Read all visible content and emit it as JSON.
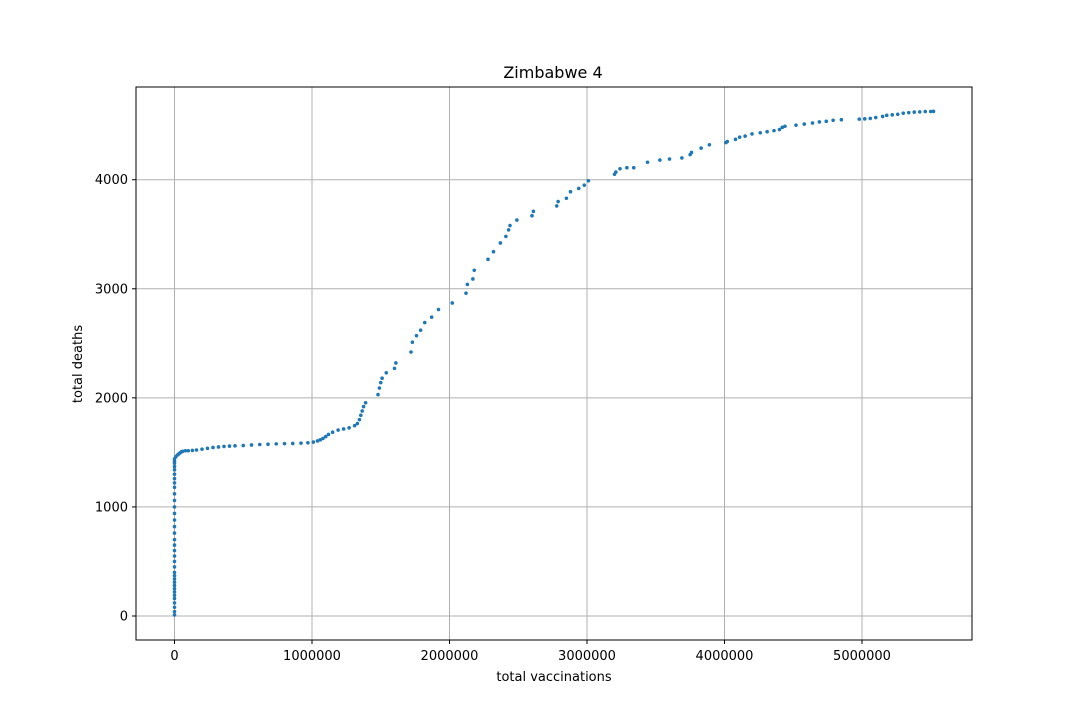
{
  "chart_data": {
    "type": "scatter",
    "title": "Zimbabwe 4",
    "xlabel": "total vaccinations",
    "ylabel": "total deaths",
    "xlim": [
      -280000,
      5800000
    ],
    "ylim": [
      -220,
      4850
    ],
    "xticks": [
      0,
      1000000,
      2000000,
      3000000,
      4000000,
      5000000
    ],
    "xtick_labels": [
      "0",
      "1000000",
      "2000000",
      "3000000",
      "4000000",
      "5000000"
    ],
    "yticks": [
      0,
      1000,
      2000,
      3000,
      4000
    ],
    "ytick_labels": [
      "0",
      "1000",
      "2000",
      "3000",
      "4000"
    ],
    "grid": true,
    "marker_color": "#1f77b4",
    "series": [
      {
        "points": [
          [
            0,
            10
          ],
          [
            0,
            40
          ],
          [
            0,
            80
          ],
          [
            0,
            120
          ],
          [
            0,
            160
          ],
          [
            0,
            190
          ],
          [
            0,
            220
          ],
          [
            0,
            250
          ],
          [
            0,
            280
          ],
          [
            0,
            310
          ],
          [
            0,
            340
          ],
          [
            0,
            370
          ],
          [
            0,
            400
          ],
          [
            0,
            450
          ],
          [
            0,
            500
          ],
          [
            0,
            550
          ],
          [
            0,
            600
          ],
          [
            0,
            650
          ],
          [
            0,
            700
          ],
          [
            0,
            760
          ],
          [
            0,
            820
          ],
          [
            0,
            880
          ],
          [
            0,
            940
          ],
          [
            0,
            1000
          ],
          [
            0,
            1060
          ],
          [
            0,
            1120
          ],
          [
            0,
            1180
          ],
          [
            0,
            1220
          ],
          [
            0,
            1260
          ],
          [
            0,
            1300
          ],
          [
            0,
            1340
          ],
          [
            0,
            1370
          ],
          [
            0,
            1400
          ],
          [
            0,
            1420
          ],
          [
            0,
            1440
          ],
          [
            10000,
            1460
          ],
          [
            20000,
            1475
          ],
          [
            30000,
            1485
          ],
          [
            40000,
            1495
          ],
          [
            50000,
            1505
          ],
          [
            60000,
            1510
          ],
          [
            80000,
            1515
          ],
          [
            100000,
            1515
          ],
          [
            130000,
            1518
          ],
          [
            160000,
            1522
          ],
          [
            200000,
            1530
          ],
          [
            240000,
            1537
          ],
          [
            280000,
            1545
          ],
          [
            320000,
            1550
          ],
          [
            360000,
            1555
          ],
          [
            400000,
            1558
          ],
          [
            440000,
            1560
          ],
          [
            500000,
            1563
          ],
          [
            560000,
            1568
          ],
          [
            620000,
            1572
          ],
          [
            680000,
            1575
          ],
          [
            740000,
            1578
          ],
          [
            800000,
            1580
          ],
          [
            860000,
            1582
          ],
          [
            920000,
            1585
          ],
          [
            970000,
            1588
          ],
          [
            1010000,
            1595
          ],
          [
            1040000,
            1605
          ],
          [
            1060000,
            1615
          ],
          [
            1080000,
            1628
          ],
          [
            1100000,
            1645
          ],
          [
            1120000,
            1665
          ],
          [
            1150000,
            1685
          ],
          [
            1190000,
            1705
          ],
          [
            1230000,
            1715
          ],
          [
            1270000,
            1725
          ],
          [
            1310000,
            1745
          ],
          [
            1330000,
            1765
          ],
          [
            1345000,
            1800
          ],
          [
            1355000,
            1840
          ],
          [
            1365000,
            1880
          ],
          [
            1375000,
            1920
          ],
          [
            1390000,
            1955
          ],
          [
            1480000,
            2030
          ],
          [
            1490000,
            2090
          ],
          [
            1500000,
            2140
          ],
          [
            1510000,
            2180
          ],
          [
            1540000,
            2230
          ],
          [
            1600000,
            2270
          ],
          [
            1610000,
            2320
          ],
          [
            1720000,
            2420
          ],
          [
            1730000,
            2510
          ],
          [
            1760000,
            2570
          ],
          [
            1790000,
            2620
          ],
          [
            1820000,
            2690
          ],
          [
            1870000,
            2740
          ],
          [
            1920000,
            2810
          ],
          [
            2020000,
            2870
          ],
          [
            2120000,
            2960
          ],
          [
            2130000,
            3040
          ],
          [
            2170000,
            3090
          ],
          [
            2180000,
            3170
          ],
          [
            2280000,
            3270
          ],
          [
            2320000,
            3340
          ],
          [
            2370000,
            3420
          ],
          [
            2410000,
            3480
          ],
          [
            2430000,
            3540
          ],
          [
            2440000,
            3580
          ],
          [
            2490000,
            3630
          ],
          [
            2600000,
            3670
          ],
          [
            2610000,
            3710
          ],
          [
            2780000,
            3760
          ],
          [
            2790000,
            3800
          ],
          [
            2850000,
            3830
          ],
          [
            2880000,
            3890
          ],
          [
            2940000,
            3920
          ],
          [
            2980000,
            3950
          ],
          [
            3010000,
            3990
          ],
          [
            3200000,
            4050
          ],
          [
            3210000,
            4070
          ],
          [
            3240000,
            4100
          ],
          [
            3290000,
            4110
          ],
          [
            3340000,
            4110
          ],
          [
            3440000,
            4160
          ],
          [
            3530000,
            4180
          ],
          [
            3600000,
            4190
          ],
          [
            3690000,
            4200
          ],
          [
            3750000,
            4230
          ],
          [
            3760000,
            4250
          ],
          [
            3830000,
            4290
          ],
          [
            3890000,
            4320
          ],
          [
            4010000,
            4340
          ],
          [
            4020000,
            4350
          ],
          [
            4080000,
            4370
          ],
          [
            4110000,
            4390
          ],
          [
            4150000,
            4400
          ],
          [
            4200000,
            4420
          ],
          [
            4260000,
            4430
          ],
          [
            4310000,
            4440
          ],
          [
            4360000,
            4450
          ],
          [
            4400000,
            4460
          ],
          [
            4420000,
            4480
          ],
          [
            4440000,
            4490
          ],
          [
            4520000,
            4500
          ],
          [
            4580000,
            4510
          ],
          [
            4640000,
            4520
          ],
          [
            4690000,
            4530
          ],
          [
            4740000,
            4535
          ],
          [
            4790000,
            4545
          ],
          [
            4850000,
            4550
          ],
          [
            4980000,
            4555
          ],
          [
            5020000,
            4558
          ],
          [
            5060000,
            4562
          ],
          [
            5100000,
            4570
          ],
          [
            5150000,
            4580
          ],
          [
            5180000,
            4590
          ],
          [
            5220000,
            4595
          ],
          [
            5260000,
            4600
          ],
          [
            5300000,
            4610
          ],
          [
            5340000,
            4615
          ],
          [
            5380000,
            4620
          ],
          [
            5420000,
            4622
          ],
          [
            5460000,
            4625
          ],
          [
            5500000,
            4625
          ],
          [
            5520000,
            4627
          ]
        ]
      }
    ]
  }
}
